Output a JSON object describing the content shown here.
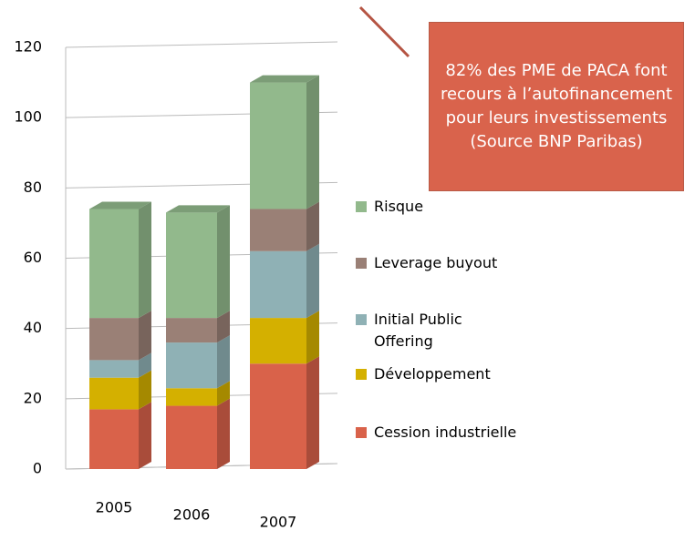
{
  "chart_data": {
    "type": "bar",
    "stacked": true,
    "categories": [
      "2005",
      "2006",
      "2007"
    ],
    "series": [
      {
        "name": "Cession industrielle",
        "color": "#d9624a",
        "values": [
          17,
          18,
          30
        ]
      },
      {
        "name": "Développement",
        "color": "#d4b000",
        "values": [
          9,
          5,
          13
        ]
      },
      {
        "name": "Initial Public Offering",
        "color": "#8fb1b5",
        "values": [
          5,
          13,
          19
        ]
      },
      {
        "name": "Leverage buyout",
        "color": "#9a8076",
        "values": [
          12,
          7,
          12
        ]
      },
      {
        "name": "Risque",
        "color": "#92b98c",
        "values": [
          31,
          30,
          36
        ]
      }
    ],
    "ylim": [
      0,
      120
    ],
    "yticks": [
      0,
      20,
      40,
      60,
      80,
      100,
      120
    ],
    "grid": true,
    "legend": "right",
    "annotation": "82% des PME de PACA font recours à l’autofinancement pour leurs investissements (Source BNP Paribas)"
  }
}
